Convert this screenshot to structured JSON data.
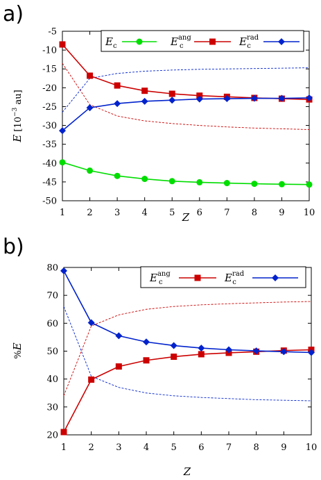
{
  "panels": [
    {
      "label": "a)",
      "chart_data": {
        "type": "line",
        "x": [
          1,
          2,
          3,
          4,
          5,
          6,
          7,
          8,
          9,
          10
        ],
        "xlabel": "Z",
        "ylabel": "E [10^-3 au]",
        "ylabel_parts": {
          "sym": "E",
          "pre": " [10",
          "exp": "−3",
          "post": " au]"
        },
        "xlim": [
          1,
          10
        ],
        "ylim": [
          -50,
          -5
        ],
        "xticks": [
          "1",
          "2",
          "3",
          "4",
          "5",
          "6",
          "7",
          "8",
          "9",
          "10"
        ],
        "yticks": [
          "-5",
          "-10",
          "-15",
          "-20",
          "-25",
          "-30",
          "-35",
          "-40",
          "-45",
          "-50"
        ],
        "ytick_values": [
          -5,
          -10,
          -15,
          -20,
          -25,
          -30,
          -35,
          -40,
          -45,
          -50
        ],
        "grid": false,
        "legend_position": "top-right",
        "series": [
          {
            "name": "E_c",
            "legend": {
              "sym": "E",
              "sub": "c",
              "sup": ""
            },
            "color": "#00dd00",
            "marker": "circle",
            "values": [
              -39.8,
              -42.0,
              -43.4,
              -44.2,
              -44.8,
              -45.1,
              -45.3,
              -45.5,
              -45.6,
              -45.7
            ]
          },
          {
            "name": "E_c^ang",
            "legend": {
              "sym": "E",
              "sub": "c",
              "sup": "ang"
            },
            "color": "#cc0000",
            "marker": "square",
            "values": [
              -8.5,
              -16.8,
              -19.4,
              -20.8,
              -21.6,
              -22.1,
              -22.4,
              -22.7,
              -22.9,
              -23.1
            ]
          },
          {
            "name": "E_c^rad",
            "legend": {
              "sym": "E",
              "sub": "c",
              "sup": "rad"
            },
            "color": "#0022cc",
            "marker": "diamond",
            "values": [
              -31.4,
              -25.3,
              -24.2,
              -23.6,
              -23.3,
              -23.0,
              -22.9,
              -22.8,
              -22.8,
              -22.7
            ]
          }
        ],
        "dashed_series": [
          {
            "color": "#cc0000",
            "values": [
              -13.5,
              -24.5,
              -27.5,
              -28.8,
              -29.5,
              -30.0,
              -30.4,
              -30.7,
              -30.9,
              -31.1
            ]
          },
          {
            "color": "#0022cc",
            "values": [
              -26.5,
              -17.5,
              -16.2,
              -15.6,
              -15.3,
              -15.1,
              -15.0,
              -14.9,
              -14.8,
              -14.7
            ]
          }
        ]
      }
    },
    {
      "label": "b)",
      "chart_data": {
        "type": "line",
        "x": [
          1,
          2,
          3,
          4,
          5,
          6,
          7,
          8,
          9,
          10
        ],
        "xlabel": "Z",
        "ylabel": "%E",
        "ylabel_parts": {
          "pre": "%",
          "sym": "E"
        },
        "xlim": [
          1,
          10
        ],
        "ylim": [
          20,
          80
        ],
        "xticks": [
          "1",
          "2",
          "3",
          "4",
          "5",
          "6",
          "7",
          "8",
          "9",
          "10"
        ],
        "yticks": [
          "80",
          "70",
          "60",
          "50",
          "40",
          "30",
          "20"
        ],
        "ytick_values": [
          80,
          70,
          60,
          50,
          40,
          30,
          20
        ],
        "grid": false,
        "legend_position": "top-right",
        "series": [
          {
            "name": "E_c^ang",
            "legend": {
              "sym": "E",
              "sub": "c",
              "sup": "ang"
            },
            "color": "#cc0000",
            "marker": "square",
            "values": [
              21.0,
              39.8,
              44.5,
              46.7,
              48.0,
              48.9,
              49.4,
              49.8,
              50.2,
              50.5
            ]
          },
          {
            "name": "E_c^rad",
            "legend": {
              "sym": "E",
              "sub": "c",
              "sup": "rad"
            },
            "color": "#0022cc",
            "marker": "diamond",
            "values": [
              78.8,
              60.2,
              55.5,
              53.3,
              52.0,
              51.1,
              50.5,
              50.1,
              49.8,
              49.5
            ]
          }
        ],
        "dashed_series": [
          {
            "color": "#cc0000",
            "values": [
              34.0,
              59.0,
              63.0,
              65.0,
              66.0,
              66.6,
              67.0,
              67.3,
              67.6,
              67.8
            ]
          },
          {
            "color": "#0022cc",
            "values": [
              66.0,
              41.0,
              37.0,
              35.0,
              34.0,
              33.4,
              33.0,
              32.6,
              32.4,
              32.2
            ]
          }
        ]
      }
    }
  ]
}
